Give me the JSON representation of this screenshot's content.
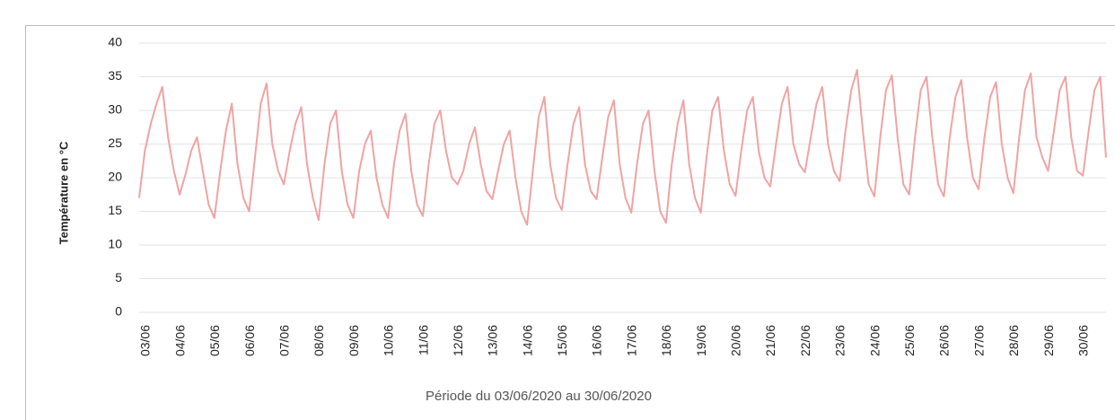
{
  "chart_data": {
    "type": "line",
    "x_label": "Période du 03/06/2020 au 30/06/2020",
    "y_label": "Température en °C",
    "categories": [
      "03/06",
      null,
      null,
      null,
      null,
      null,
      "04/06",
      null,
      null,
      null,
      null,
      null,
      "05/06",
      null,
      null,
      null,
      null,
      null,
      "06/06",
      null,
      null,
      null,
      null,
      null,
      "07/06",
      null,
      null,
      null,
      null,
      null,
      "08/06",
      null,
      null,
      null,
      null,
      null,
      "09/06",
      null,
      null,
      null,
      null,
      null,
      "10/06",
      null,
      null,
      null,
      null,
      null,
      "11/06",
      null,
      null,
      null,
      null,
      null,
      "12/06",
      null,
      null,
      null,
      null,
      null,
      "13/06",
      null,
      null,
      null,
      null,
      null,
      "14/06",
      null,
      null,
      null,
      null,
      null,
      "15/06",
      null,
      null,
      null,
      null,
      null,
      "16/06",
      null,
      null,
      null,
      null,
      null,
      "17/06",
      null,
      null,
      null,
      null,
      null,
      "18/06",
      null,
      null,
      null,
      null,
      null,
      "19/06",
      null,
      null,
      null,
      null,
      null,
      "20/06",
      null,
      null,
      null,
      null,
      null,
      "21/06",
      null,
      null,
      null,
      null,
      null,
      "22/06",
      null,
      null,
      null,
      null,
      null,
      "23/06",
      null,
      null,
      null,
      null,
      null,
      "24/06",
      null,
      null,
      null,
      null,
      null,
      "25/06",
      null,
      null,
      null,
      null,
      null,
      "26/06",
      null,
      null,
      null,
      null,
      null,
      "27/06",
      null,
      null,
      null,
      null,
      null,
      "28/06",
      null,
      null,
      null,
      null,
      null,
      "29/06",
      null,
      null,
      null,
      null,
      null,
      "30/06",
      null,
      null,
      null,
      null,
      null
    ],
    "series": [
      {
        "name": "Température",
        "color": "#f0a3a3",
        "values": [
          17,
          24,
          28,
          31,
          33.5,
          26,
          21,
          17.5,
          20.5,
          24,
          26,
          21,
          16,
          14,
          21,
          27,
          31,
          22,
          17,
          15,
          23,
          31,
          34,
          25,
          21,
          19,
          24,
          28,
          30.5,
          22,
          17,
          13.7,
          22,
          28,
          30,
          21,
          16,
          14,
          21,
          25,
          27,
          20,
          16,
          14,
          22,
          27,
          29.5,
          21,
          16,
          14.3,
          22,
          28,
          30,
          24,
          20,
          19,
          21,
          25,
          27.5,
          22,
          18,
          16.8,
          21,
          25,
          27,
          20,
          15,
          13,
          21,
          29,
          32,
          22,
          17,
          15.2,
          22,
          28,
          30.5,
          22,
          18,
          16.8,
          23,
          29,
          31.5,
          22,
          17,
          14.8,
          22,
          28,
          30,
          21,
          15,
          13.3,
          22,
          28,
          31.5,
          22,
          17,
          14.8,
          23,
          30,
          32,
          24,
          19,
          17.3,
          24,
          30,
          32,
          24,
          20,
          18.7,
          25,
          31,
          33.5,
          25,
          22,
          20.8,
          26,
          31,
          33.5,
          25,
          21,
          19.5,
          27,
          33,
          36,
          27,
          19,
          17.2,
          26,
          33,
          35.2,
          26,
          19,
          17.5,
          26,
          33,
          35,
          26,
          19,
          17.2,
          26,
          32,
          34.5,
          26,
          20,
          18.3,
          26,
          32,
          34.2,
          25,
          20,
          17.7,
          26,
          33,
          35.5,
          26,
          23,
          21,
          27,
          33,
          35,
          26,
          21,
          20.3,
          27,
          33,
          35,
          23
        ]
      }
    ],
    "ylim": [
      0,
      40
    ],
    "yticks": [
      0,
      5,
      10,
      15,
      20,
      25,
      30,
      35,
      40
    ],
    "grid": true
  }
}
